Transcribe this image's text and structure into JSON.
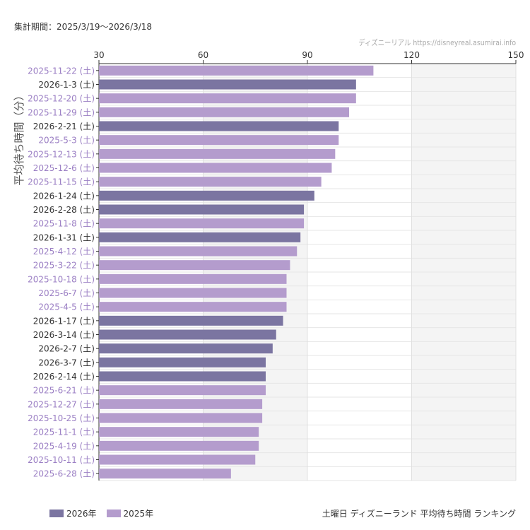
{
  "header": {
    "period": "集計期間：2025/3/19〜2026/3/18",
    "credit": "ディズニーリアル https://disneyreal.asumirai.info"
  },
  "colors": {
    "2026": "#7b75a1",
    "2025": "#b49ccd",
    "label2026": "#333333",
    "label2025": "#9b7fc4"
  },
  "chart_data": {
    "type": "bar",
    "orientation": "horizontal",
    "title": "土曜日 ディズニーランド 平均待ち時間 ランキング",
    "ylabel": "平均待ち時間（分）",
    "xlim": [
      30,
      150
    ],
    "xticks": [
      30,
      60,
      90,
      120,
      150
    ],
    "legend": [
      {
        "name": "2026年",
        "key": "2026"
      },
      {
        "name": "2025年",
        "key": "2025"
      }
    ],
    "legend_position": "bottom-left",
    "categories": [
      "2025-11-22 (土)",
      "2026-1-3 (土)",
      "2025-12-20 (土)",
      "2025-11-29 (土)",
      "2026-2-21 (土)",
      "2025-5-3 (土)",
      "2025-12-13 (土)",
      "2025-12-6 (土)",
      "2025-11-15 (土)",
      "2026-1-24 (土)",
      "2026-2-28 (土)",
      "2025-11-8 (土)",
      "2026-1-31 (土)",
      "2025-4-12 (土)",
      "2025-3-22 (土)",
      "2025-10-18 (土)",
      "2025-6-7 (土)",
      "2025-4-5 (土)",
      "2026-1-17 (土)",
      "2026-3-14 (土)",
      "2026-2-7 (土)",
      "2026-3-7 (土)",
      "2026-2-14 (土)",
      "2025-6-21 (土)",
      "2025-12-27 (土)",
      "2025-10-25 (土)",
      "2025-11-1 (土)",
      "2025-4-19 (土)",
      "2025-10-11 (土)",
      "2025-6-28 (土)"
    ],
    "values": [
      109,
      104,
      104,
      102,
      99,
      99,
      98,
      97,
      94,
      92,
      89,
      89,
      88,
      87,
      85,
      84,
      84,
      84,
      83,
      81,
      80,
      78,
      78,
      78,
      77,
      77,
      76,
      76,
      75,
      68
    ]
  }
}
